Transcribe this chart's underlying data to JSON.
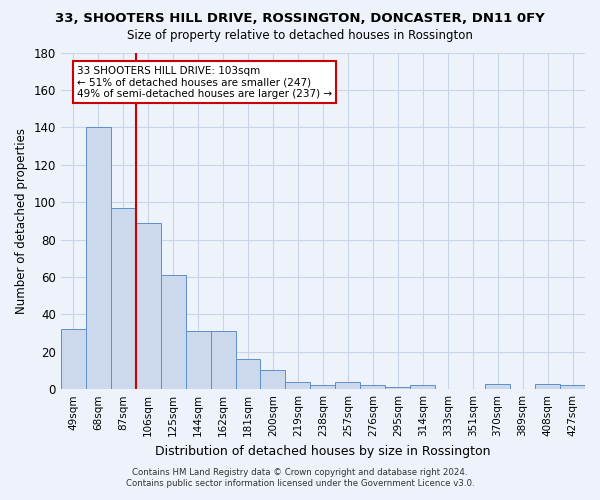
{
  "title1": "33, SHOOTERS HILL DRIVE, ROSSINGTON, DONCASTER, DN11 0FY",
  "title2": "Size of property relative to detached houses in Rossington",
  "xlabel": "Distribution of detached houses by size in Rossington",
  "ylabel": "Number of detached properties",
  "categories": [
    "49sqm",
    "68sqm",
    "87sqm",
    "106sqm",
    "125sqm",
    "144sqm",
    "162sqm",
    "181sqm",
    "200sqm",
    "219sqm",
    "238sqm",
    "257sqm",
    "276sqm",
    "295sqm",
    "314sqm",
    "333sqm",
    "351sqm",
    "370sqm",
    "389sqm",
    "408sqm",
    "427sqm"
  ],
  "values": [
    32,
    140,
    97,
    89,
    61,
    31,
    31,
    16,
    10,
    4,
    2,
    4,
    2,
    1,
    2,
    0,
    0,
    3,
    0,
    3,
    2
  ],
  "bar_color": "#ccd9ec",
  "bar_edge_color": "#5b8fc9",
  "grid_color": "#c8d4e8",
  "background_color": "#eef2fa",
  "vline_color": "#cc0000",
  "vline_x_index": 3,
  "annotation_text": "33 SHOOTERS HILL DRIVE: 103sqm\n← 51% of detached houses are smaller (247)\n49% of semi-detached houses are larger (237) →",
  "annotation_box_color": "#ffffff",
  "annotation_box_edge": "#cc0000",
  "footer_line1": "Contains HM Land Registry data © Crown copyright and database right 2024.",
  "footer_line2": "Contains public sector information licensed under the Government Licence v3.0.",
  "ylim": [
    0,
    180
  ],
  "yticks": [
    0,
    20,
    40,
    60,
    80,
    100,
    120,
    140,
    160,
    180
  ]
}
